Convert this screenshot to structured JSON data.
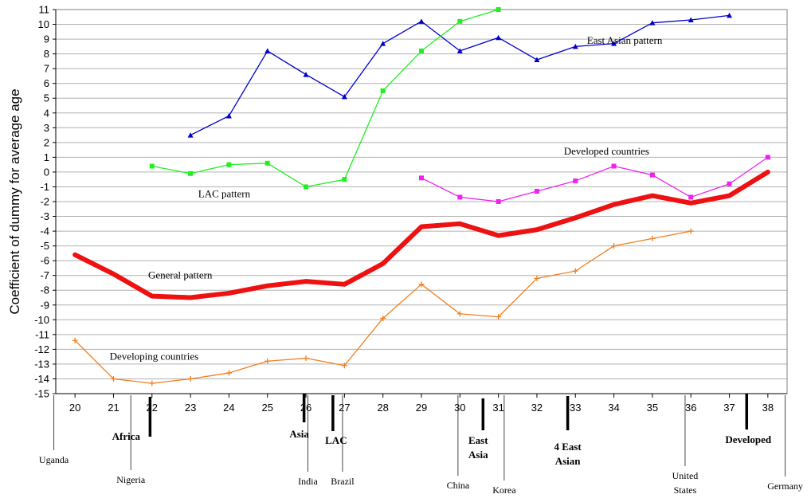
{
  "chart_data": {
    "type": "line",
    "ylabel": "Coefficient of dummy for average age",
    "xlabel": "",
    "xlim": [
      19.5,
      38.5
    ],
    "ylim": [
      -15,
      11
    ],
    "x_ticks": [
      20,
      21,
      22,
      23,
      24,
      25,
      26,
      27,
      28,
      29,
      30,
      31,
      32,
      33,
      34,
      35,
      36,
      37,
      38
    ],
    "y_ticks": [
      -15,
      -14,
      -13,
      -12,
      -11,
      -10,
      -9,
      -8,
      -7,
      -6,
      -5,
      -4,
      -3,
      -2,
      -1,
      0,
      1,
      2,
      3,
      4,
      5,
      6,
      7,
      8,
      9,
      10,
      11
    ],
    "grid": true,
    "series": [
      {
        "name": "East Asian pattern",
        "color": "#0000cc",
        "marker": "triangle",
        "width": 1.3,
        "x": [
          23,
          24,
          25,
          26,
          27,
          28,
          29,
          30,
          31,
          32,
          33,
          34,
          35,
          36,
          37
        ],
        "y": [
          2.5,
          3.8,
          8.2,
          6.6,
          5.1,
          8.7,
          10.2,
          8.2,
          9.1,
          7.6,
          8.5,
          8.7,
          10.1,
          10.3,
          10.6
        ]
      },
      {
        "name": "LAC pattern",
        "color": "#22ee22",
        "marker": "square",
        "width": 1.3,
        "x": [
          22,
          23,
          24,
          25,
          26,
          27,
          28,
          29,
          30,
          31
        ],
        "y": [
          0.4,
          -0.1,
          0.5,
          0.6,
          -1.0,
          -0.5,
          5.5,
          8.2,
          10.2,
          11.0
        ]
      },
      {
        "name": "Developed countries",
        "color": "#ee22ee",
        "marker": "square",
        "width": 1.3,
        "x": [
          29,
          30,
          31,
          32,
          33,
          34,
          35,
          36,
          37,
          38
        ],
        "y": [
          -0.4,
          -1.7,
          -2.0,
          -1.3,
          -0.6,
          0.4,
          -0.2,
          -1.7,
          -0.8,
          1.0
        ]
      },
      {
        "name": "General pattern",
        "color": "#ee1111",
        "marker": "none",
        "width": 6,
        "x": [
          20,
          21,
          22,
          23,
          24,
          25,
          26,
          27,
          28,
          29,
          30,
          31,
          32,
          33,
          34,
          35,
          36,
          37,
          38
        ],
        "y": [
          -5.6,
          -6.9,
          -8.4,
          -8.5,
          -8.2,
          -7.7,
          -7.4,
          -7.6,
          -6.2,
          -3.7,
          -3.5,
          -4.3,
          -3.9,
          -3.1,
          -2.2,
          -1.6,
          -2.1,
          -1.6,
          0.0
        ]
      },
      {
        "name": "Developing countries",
        "color": "#f08020",
        "marker": "plus",
        "width": 1.3,
        "x": [
          20,
          21,
          22,
          23,
          24,
          25,
          26,
          27,
          28,
          29,
          30,
          31,
          32,
          33,
          34,
          35,
          36
        ],
        "y": [
          -11.4,
          -14.0,
          -14.3,
          -14.0,
          -13.6,
          -12.8,
          -12.6,
          -13.1,
          -9.9,
          -7.6,
          -9.6,
          -9.8,
          -7.2,
          -6.7,
          -5.0,
          -4.5,
          -4.0
        ]
      }
    ],
    "annotations": [
      {
        "text": "East Asian pattern",
        "x": 33.3,
        "y": 8.9
      },
      {
        "text": "Developed countries",
        "x": 32.7,
        "y": 1.4
      },
      {
        "text": "LAC pattern",
        "x": 23.2,
        "y": -1.5
      },
      {
        "text": "General pattern",
        "x": 21.9,
        "y": -7.0
      },
      {
        "text": "Developing countries",
        "x": 20.9,
        "y": -12.5
      }
    ],
    "country_markers": [
      {
        "name": "Uganda",
        "x": 19.45
      },
      {
        "name": "Nigeria",
        "x": 21.45
      },
      {
        "name": "India",
        "x": 26.05
      },
      {
        "name": "Brazil",
        "x": 26.95
      },
      {
        "name": "China",
        "x": 29.95
      },
      {
        "name": "Korea",
        "x": 31.15
      },
      {
        "name": "United States",
        "x": 35.85
      },
      {
        "name": "Germany",
        "x": 38.45
      }
    ],
    "region_markers": [
      {
        "name": "Africa",
        "x": 21.95
      },
      {
        "name": "Asia",
        "x": 25.95
      },
      {
        "name": "LAC",
        "x": 26.7
      },
      {
        "name": "East Asia",
        "x": 30.6
      },
      {
        "name": "4 East Asian",
        "x": 32.8
      },
      {
        "name": "Developed",
        "x": 37.45
      }
    ]
  }
}
